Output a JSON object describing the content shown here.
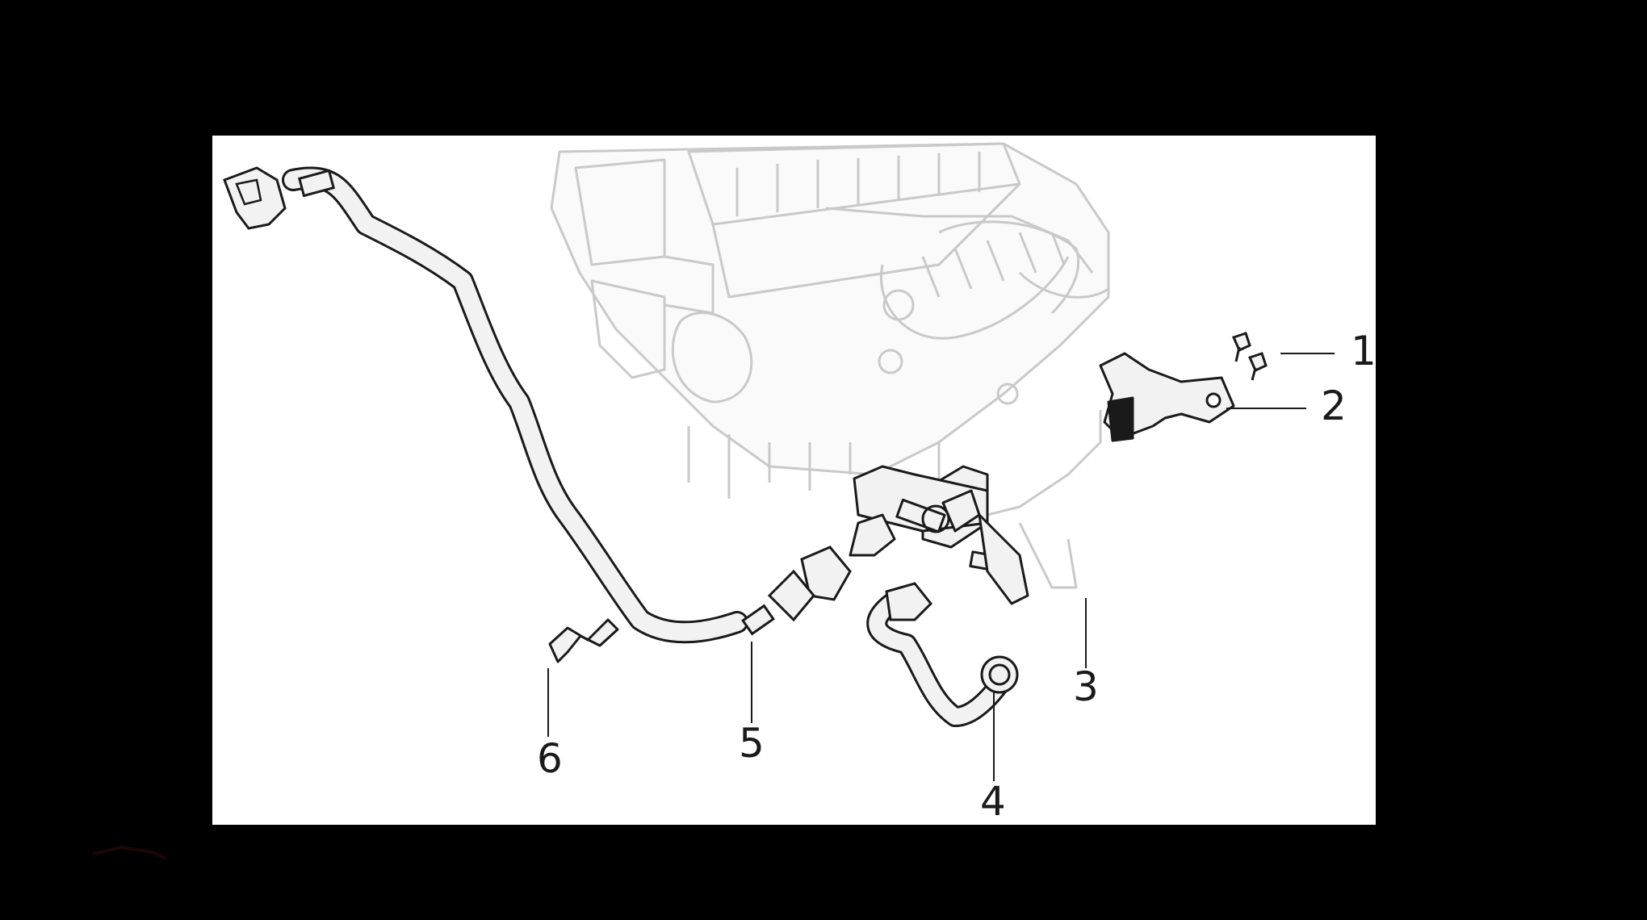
{
  "diagram": {
    "type": "exploded parts diagram",
    "colors": {
      "background": "#000000",
      "panel": "#ffffff",
      "engine_line": "#c8c8c8",
      "part_line": "#1a1a1a",
      "part_fill": "#f2f2f2"
    },
    "callouts": [
      {
        "id": "1",
        "label": "1",
        "part": "bolts"
      },
      {
        "id": "2",
        "label": "2",
        "part": "bracket"
      },
      {
        "id": "3",
        "label": "3",
        "part": "valve-assembly"
      },
      {
        "id": "4",
        "label": "4",
        "part": "short-hose"
      },
      {
        "id": "5",
        "label": "5",
        "part": "long-hose"
      },
      {
        "id": "6",
        "label": "6",
        "part": "clip"
      }
    ]
  }
}
